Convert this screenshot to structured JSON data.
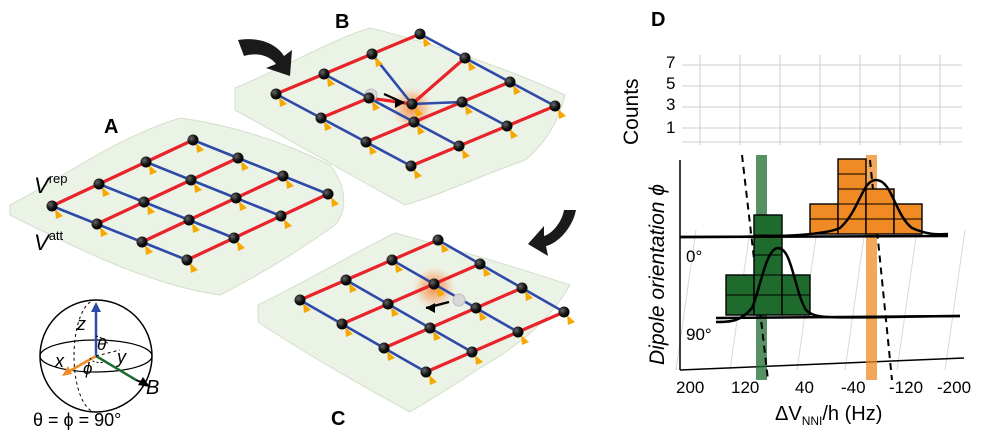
{
  "panels": {
    "a": "A",
    "b": "B",
    "c": "C",
    "d": "D"
  },
  "panel_a": {
    "v_rep": {
      "main": "V",
      "sup": "rep"
    },
    "v_att": {
      "main": "V",
      "sup": "att"
    },
    "bloch": {
      "z": "z",
      "x": "x",
      "y": "y",
      "theta": "θ",
      "phi": "ϕ",
      "B": "B"
    },
    "angle_caption": "θ = ϕ = 90°"
  },
  "panel_d": {
    "counts_label": "Counts",
    "counts_ticks": [
      "7",
      "5",
      "3",
      "1"
    ],
    "dipole_label": "Dipole orientation ϕ",
    "orientation_0": "0°",
    "orientation_90": "90°",
    "x_ticks": [
      "200",
      "120",
      "40",
      "-40",
      "-120",
      "-200"
    ],
    "x_title": {
      "main": "ΔV",
      "sub": "NNI",
      "rest": "/h (Hz)"
    }
  },
  "colors": {
    "repulsive": "#e8232a",
    "attractive": "#2e4aa8",
    "green": "#1f6b2d",
    "orange": "#f08a24",
    "atom": "#111111",
    "arrow_tip": "#f5a800",
    "highlight": "#f7a060"
  },
  "chart_data": {
    "type": "histogram",
    "xlabel": "ΔV_NNI/h (Hz)",
    "ylabel": "Counts",
    "xlim": [
      200,
      -200
    ],
    "yticks": [
      1,
      3,
      5,
      7
    ],
    "series": [
      {
        "name": "0°",
        "bins": [
          {
            "center": 0,
            "count": 2
          },
          {
            "center": -40,
            "count": 5
          },
          {
            "center": -80,
            "count": 3
          },
          {
            "center": -120,
            "count": 2
          }
        ]
      },
      {
        "name": "90°",
        "bins": [
          {
            "center": 120,
            "count": 2
          },
          {
            "center": 80,
            "count": 5
          },
          {
            "center": 40,
            "count": 2
          }
        ]
      }
    ]
  }
}
